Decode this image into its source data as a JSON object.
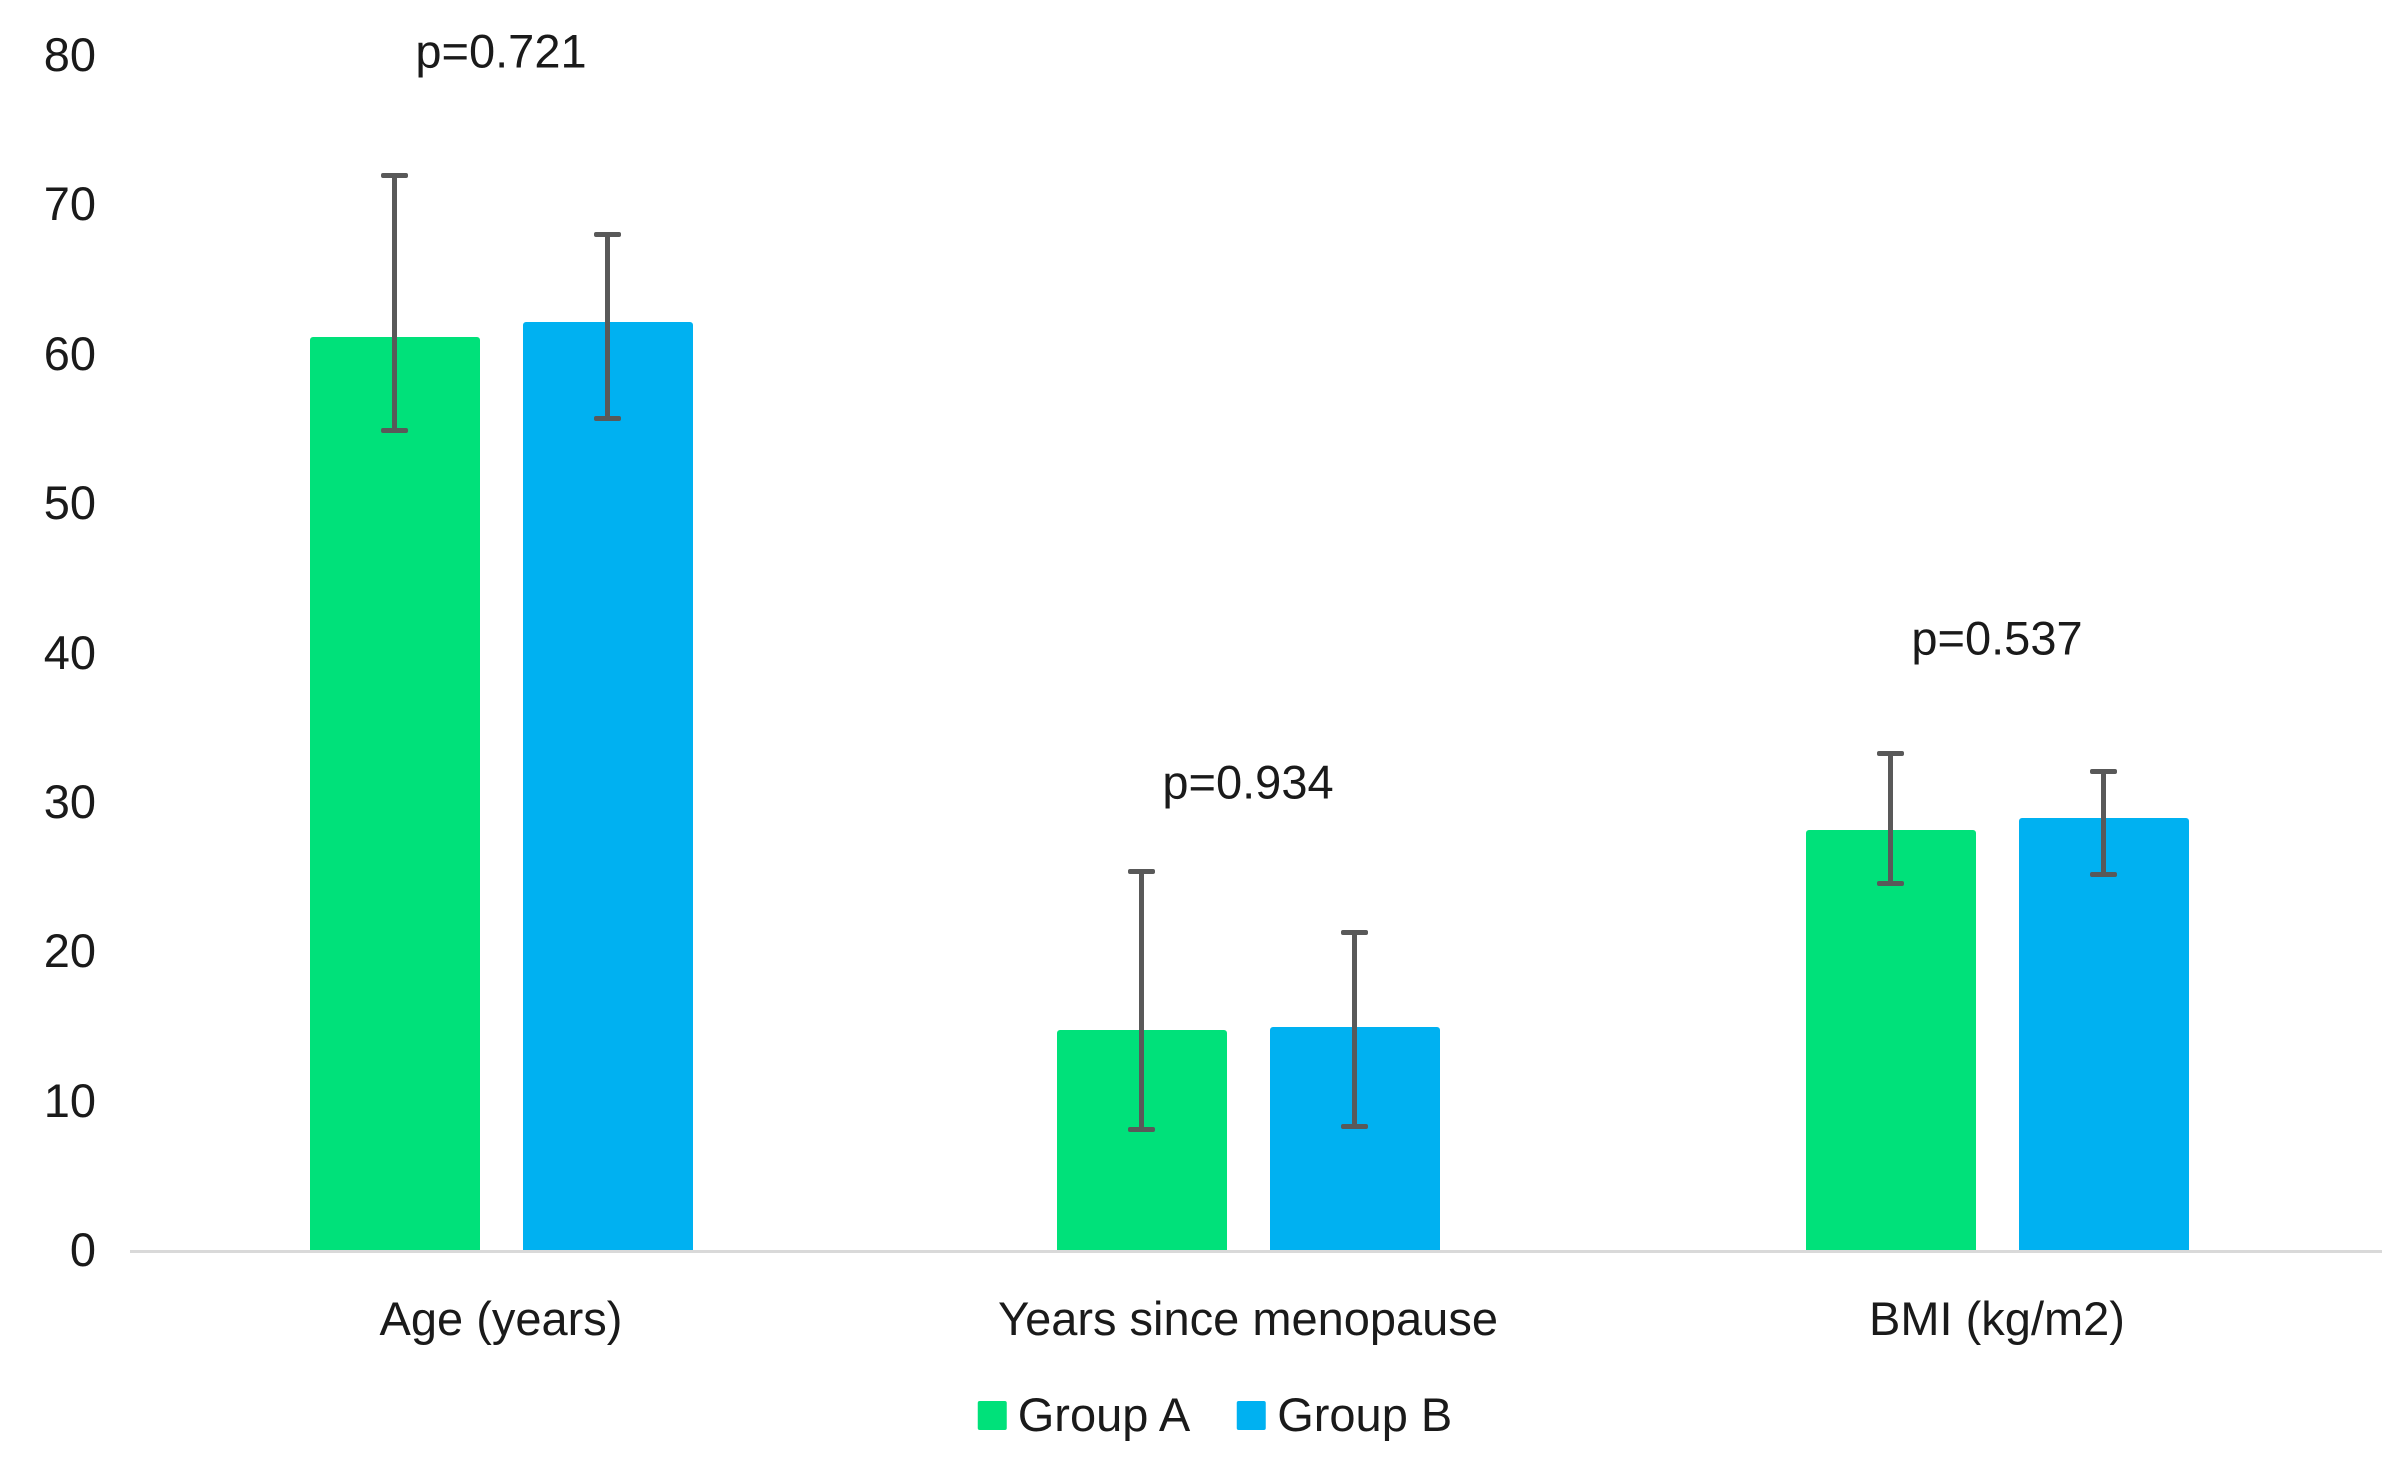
{
  "chart_data": {
    "type": "bar",
    "title": "",
    "categories": [
      "Age (years)",
      "Years since menopause",
      "BMI (kg/m2)"
    ],
    "series": [
      {
        "name": "Group A",
        "color": "#00E17A",
        "values": [
          61.1,
          14.7,
          28.1
        ],
        "error_high": [
          72.0,
          25.4,
          33.3
        ],
        "error_low": [
          54.9,
          8.1,
          24.6
        ]
      },
      {
        "name": "Group B",
        "color": "#00B1F1",
        "values": [
          62.1,
          14.9,
          28.9
        ],
        "error_high": [
          68.0,
          21.3,
          32.1
        ],
        "error_low": [
          55.7,
          8.3,
          25.2
        ]
      }
    ],
    "annotations": [
      {
        "text": "p=0.721",
        "category_index": 0,
        "y_value": 80.3
      },
      {
        "text": "p=0.934",
        "category_index": 1,
        "y_value": 31.3
      },
      {
        "text": "p=0.537",
        "category_index": 2,
        "y_value": 41.0
      }
    ],
    "y_axis": {
      "min": 0,
      "max": 80,
      "step": 10,
      "tick_labels": [
        "0",
        "10",
        "20",
        "30",
        "40",
        "50",
        "60",
        "70",
        "80"
      ]
    },
    "x_axis": {
      "tick_labels": [
        "Age (years)",
        "Years since menopause",
        "BMI (kg/m2)"
      ]
    },
    "legend": {
      "position": "bottom",
      "entries": [
        {
          "label": "Group A",
          "color": "#00E17A"
        },
        {
          "label": "Group B",
          "color": "#00B1F1"
        }
      ]
    },
    "grid": false,
    "error_bar_color": "#595959",
    "axis_line_color": "#D9D9D9",
    "text_color": "#1A1A1A",
    "background_color": "#FFFFFF"
  }
}
